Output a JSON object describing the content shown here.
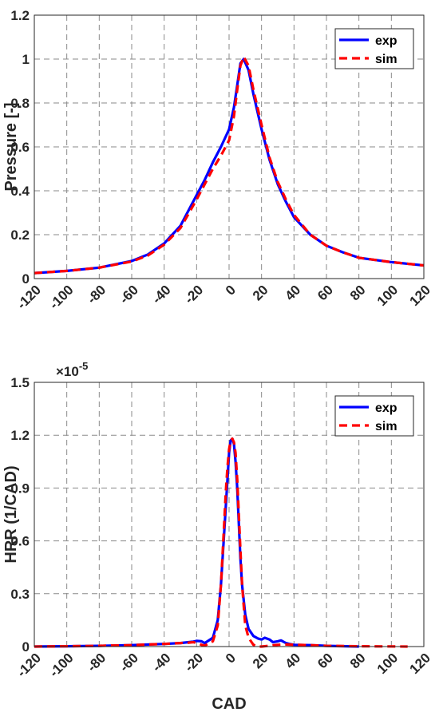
{
  "chart_data": [
    {
      "type": "line",
      "xlabel": "",
      "ylabel": "Pressure [-]",
      "xlim": [
        -120,
        120
      ],
      "ylim": [
        0,
        1.2
      ],
      "xticks": [
        "-120",
        "-100",
        "-80",
        "-60",
        "-40",
        "-20",
        "0",
        "20",
        "40",
        "60",
        "80",
        "100",
        "120"
      ],
      "yticks": [
        "0",
        "0.2",
        "0.4",
        "0.6",
        "0.8",
        "1",
        "1.2"
      ],
      "grid": true,
      "legend_position": "top-right",
      "series": [
        {
          "name": "exp",
          "color": "#0000ff",
          "style": "solid",
          "x": [
            -120,
            -100,
            -80,
            -60,
            -50,
            -40,
            -30,
            -20,
            -15,
            -10,
            -5,
            0,
            3,
            5,
            7,
            9,
            12,
            15,
            20,
            25,
            30,
            35,
            40,
            50,
            60,
            70,
            80,
            100,
            120
          ],
          "y": [
            0.025,
            0.035,
            0.05,
            0.08,
            0.11,
            0.16,
            0.24,
            0.38,
            0.45,
            0.53,
            0.6,
            0.68,
            0.78,
            0.88,
            0.98,
            1.0,
            0.95,
            0.84,
            0.68,
            0.54,
            0.43,
            0.35,
            0.28,
            0.2,
            0.15,
            0.12,
            0.095,
            0.075,
            0.06
          ]
        },
        {
          "name": "sim",
          "color": "#ff0000",
          "style": "dashed",
          "x": [
            -120,
            -100,
            -80,
            -60,
            -50,
            -40,
            -30,
            -20,
            -15,
            -10,
            -5,
            0,
            3,
            5,
            7,
            9,
            12,
            15,
            20,
            25,
            30,
            35,
            40,
            50,
            60,
            70,
            80,
            100,
            120
          ],
          "y": [
            0.025,
            0.035,
            0.05,
            0.078,
            0.105,
            0.155,
            0.23,
            0.36,
            0.43,
            0.5,
            0.56,
            0.63,
            0.74,
            0.86,
            0.97,
            1.01,
            0.97,
            0.86,
            0.7,
            0.55,
            0.44,
            0.36,
            0.29,
            0.2,
            0.15,
            0.12,
            0.095,
            0.075,
            0.06
          ]
        }
      ]
    },
    {
      "type": "line",
      "xlabel": "CAD",
      "ylabel": "HRR (1/CAD)",
      "y_multiplier_base": "×10",
      "y_multiplier_exp": "-5",
      "xlim": [
        -120,
        120
      ],
      "ylim": [
        0,
        1.5
      ],
      "xticks": [
        "-120",
        "-100",
        "-80",
        "-60",
        "-40",
        "-20",
        "0",
        "20",
        "40",
        "60",
        "80",
        "100",
        "120"
      ],
      "yticks": [
        "0",
        "0.3",
        "0.6",
        "0.9",
        "1.2",
        "1.5"
      ],
      "grid": true,
      "legend_position": "top-right",
      "series": [
        {
          "name": "exp",
          "color": "#0000ff",
          "style": "solid",
          "x": [
            -120,
            -100,
            -80,
            -60,
            -40,
            -30,
            -25,
            -22,
            -20,
            -17,
            -15,
            -10,
            -7,
            -5,
            -3,
            -1,
            0,
            1,
            2,
            3,
            4,
            5,
            6,
            7,
            8,
            10,
            12,
            15,
            18,
            20,
            22,
            25,
            27,
            30,
            32,
            35,
            37,
            40,
            50,
            60,
            80
          ],
          "y": [
            0.0,
            0.002,
            0.004,
            0.008,
            0.015,
            0.02,
            0.025,
            0.028,
            0.032,
            0.03,
            0.02,
            0.05,
            0.15,
            0.35,
            0.65,
            0.95,
            1.1,
            1.17,
            1.18,
            1.15,
            1.05,
            0.9,
            0.7,
            0.5,
            0.35,
            0.18,
            0.1,
            0.06,
            0.045,
            0.04,
            0.05,
            0.04,
            0.025,
            0.03,
            0.035,
            0.02,
            0.015,
            0.01,
            0.008,
            0.004,
            0.0
          ]
        },
        {
          "name": "sim",
          "color": "#ff0000",
          "style": "dashed",
          "x": [
            -120,
            -100,
            -80,
            -60,
            -40,
            -30,
            -25,
            -22,
            -20,
            -17,
            -15,
            -10,
            -7,
            -5,
            -3,
            -2,
            -1,
            0,
            1,
            2,
            3,
            4,
            5,
            6,
            7,
            8,
            10,
            12,
            15,
            18,
            20,
            25,
            30,
            35,
            40,
            50,
            60,
            80,
            110
          ],
          "y": [
            0.0,
            0.002,
            0.004,
            0.008,
            0.015,
            0.02,
            0.022,
            0.025,
            0.02,
            0.01,
            0.005,
            0.03,
            0.12,
            0.35,
            0.7,
            0.88,
            1.02,
            1.12,
            1.17,
            1.18,
            1.16,
            1.1,
            0.95,
            0.75,
            0.55,
            0.35,
            0.12,
            0.05,
            0.01,
            0.0,
            0.0,
            0.005,
            0.01,
            0.012,
            0.01,
            0.008,
            0.004,
            0.002,
            0.0
          ]
        }
      ]
    }
  ]
}
